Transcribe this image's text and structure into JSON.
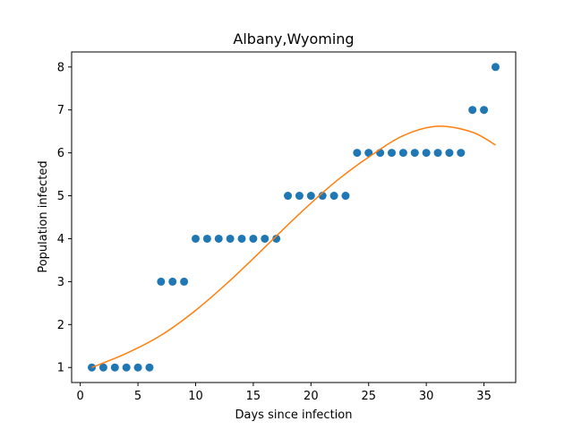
{
  "chart_data": {
    "type": "scatter",
    "title": "Albany,Wyoming",
    "xlabel": "Days since infection",
    "ylabel": "Population infected",
    "xlim": [
      -0.75,
      37.75
    ],
    "ylim": [
      0.65,
      8.35
    ],
    "xticks": [
      0,
      5,
      10,
      15,
      20,
      25,
      30,
      35
    ],
    "yticks": [
      1,
      2,
      3,
      4,
      5,
      6,
      7,
      8
    ],
    "grid": false,
    "series": [
      {
        "kind": "scatter",
        "color": "#1f77b4",
        "x": [
          1,
          2,
          3,
          4,
          5,
          6,
          7,
          8,
          9,
          10,
          11,
          12,
          13,
          14,
          15,
          16,
          17,
          18,
          19,
          20,
          21,
          22,
          23,
          24,
          25,
          26,
          27,
          28,
          29,
          30,
          31,
          32,
          33,
          34,
          35,
          36
        ],
        "y": [
          1,
          1,
          1,
          1,
          1,
          1,
          3,
          3,
          3,
          4,
          4,
          4,
          4,
          4,
          4,
          4,
          4,
          5,
          5,
          5,
          5,
          5,
          5,
          6,
          6,
          6,
          6,
          6,
          6,
          6,
          6,
          6,
          6,
          7,
          7,
          8
        ]
      },
      {
        "kind": "line",
        "color": "#ff7f0e",
        "x": [
          1,
          4,
          7,
          10,
          13,
          16,
          19,
          22,
          25,
          28,
          31,
          34,
          36
        ],
        "y": [
          1.0,
          1.33,
          1.75,
          2.33,
          3.03,
          3.8,
          4.58,
          5.3,
          5.9,
          6.4,
          6.62,
          6.48,
          6.18
        ]
      }
    ]
  }
}
